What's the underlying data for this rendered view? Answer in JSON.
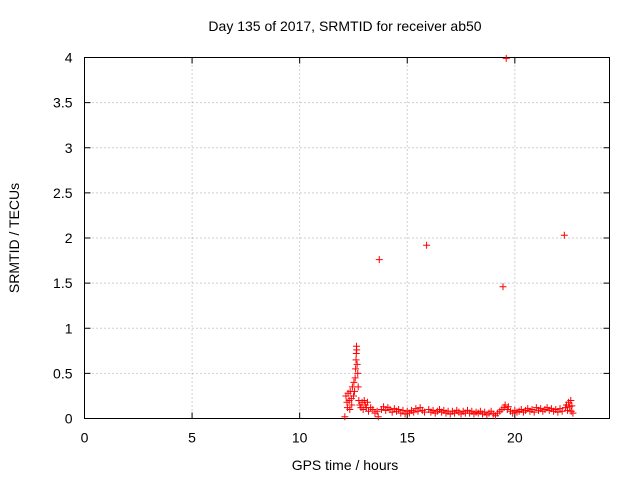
{
  "chart_data": {
    "type": "scatter",
    "title": "Day 135 of 2017, SRMTID for receiver ab50",
    "xlabel": "GPS time / hours",
    "ylabel": "SRMTID / TECUs",
    "xlim": [
      0,
      24.4
    ],
    "ylim": [
      0,
      4
    ],
    "xticks": [
      0,
      5,
      10,
      15,
      20
    ],
    "xtick_labels": [
      "0",
      "5",
      "10",
      "15",
      "20"
    ],
    "yticks": [
      0,
      0.5,
      1,
      1.5,
      2,
      2.5,
      3,
      3.5,
      4
    ],
    "ytick_labels": [
      "0",
      "0.5",
      "1",
      "1.5",
      "2",
      "2.5",
      "3",
      "3.5",
      "4"
    ],
    "grid": true,
    "legend": "none",
    "marker": "+",
    "color": "#ff0000",
    "series": [
      {
        "points": [
          [
            12.1,
            0.02
          ],
          [
            12.15,
            0.25
          ],
          [
            12.2,
            0.18
          ],
          [
            12.22,
            0.12
          ],
          [
            12.25,
            0.28
          ],
          [
            12.3,
            0.2
          ],
          [
            12.33,
            0.1
          ],
          [
            12.35,
            0.3
          ],
          [
            12.4,
            0.22
          ],
          [
            12.42,
            0.15
          ],
          [
            12.45,
            0.35
          ],
          [
            12.5,
            0.25
          ],
          [
            12.52,
            0.4
          ],
          [
            12.55,
            0.3
          ],
          [
            12.58,
            0.45
          ],
          [
            12.6,
            0.55
          ],
          [
            12.62,
            0.65
          ],
          [
            12.63,
            0.72
          ],
          [
            12.64,
            0.8
          ],
          [
            12.65,
            0.76
          ],
          [
            12.67,
            0.6
          ],
          [
            12.7,
            0.5
          ],
          [
            12.72,
            0.35
          ],
          [
            12.75,
            0.2
          ],
          [
            12.8,
            0.15
          ],
          [
            12.85,
            0.12
          ],
          [
            12.9,
            0.18
          ],
          [
            12.95,
            0.1
          ],
          [
            13.0,
            0.2
          ],
          [
            13.05,
            0.15
          ],
          [
            13.1,
            0.12
          ],
          [
            13.15,
            0.18
          ],
          [
            13.2,
            0.08
          ],
          [
            13.3,
            0.12
          ],
          [
            13.4,
            0.1
          ],
          [
            13.5,
            0.06
          ],
          [
            13.6,
            0.08
          ],
          [
            13.65,
            0.02
          ],
          [
            13.7,
            1.76
          ],
          [
            13.8,
            0.1
          ],
          [
            13.9,
            0.13
          ],
          [
            14.0,
            0.09
          ],
          [
            14.1,
            0.12
          ],
          [
            14.2,
            0.1
          ],
          [
            14.3,
            0.07
          ],
          [
            14.4,
            0.11
          ],
          [
            14.5,
            0.08
          ],
          [
            14.6,
            0.1
          ],
          [
            14.7,
            0.06
          ],
          [
            14.8,
            0.09
          ],
          [
            14.9,
            0.05
          ],
          [
            15.0,
            0.08
          ],
          [
            15.1,
            0.06
          ],
          [
            15.2,
            0.09
          ],
          [
            15.3,
            0.07
          ],
          [
            15.4,
            0.11
          ],
          [
            15.5,
            0.08
          ],
          [
            15.6,
            0.12
          ],
          [
            15.7,
            0.09
          ],
          [
            15.8,
            0.07
          ],
          [
            15.9,
            1.92
          ],
          [
            16.0,
            0.1
          ],
          [
            16.1,
            0.07
          ],
          [
            16.2,
            0.09
          ],
          [
            16.3,
            0.06
          ],
          [
            16.4,
            0.08
          ],
          [
            16.5,
            0.1
          ],
          [
            16.6,
            0.07
          ],
          [
            16.7,
            0.09
          ],
          [
            16.8,
            0.06
          ],
          [
            16.9,
            0.08
          ],
          [
            17.0,
            0.05
          ],
          [
            17.1,
            0.08
          ],
          [
            17.2,
            0.06
          ],
          [
            17.3,
            0.09
          ],
          [
            17.4,
            0.07
          ],
          [
            17.5,
            0.05
          ],
          [
            17.6,
            0.08
          ],
          [
            17.7,
            0.06
          ],
          [
            17.8,
            0.09
          ],
          [
            17.9,
            0.06
          ],
          [
            18.0,
            0.08
          ],
          [
            18.1,
            0.05
          ],
          [
            18.2,
            0.07
          ],
          [
            18.3,
            0.06
          ],
          [
            18.4,
            0.08
          ],
          [
            18.5,
            0.05
          ],
          [
            18.6,
            0.07
          ],
          [
            18.7,
            0.04
          ],
          [
            18.8,
            0.06
          ],
          [
            18.9,
            0.08
          ],
          [
            19.0,
            0.05
          ],
          [
            19.1,
            0.03
          ],
          [
            19.2,
            0.06
          ],
          [
            19.3,
            0.08
          ],
          [
            19.4,
            0.1
          ],
          [
            19.45,
            1.46
          ],
          [
            19.5,
            0.12
          ],
          [
            19.55,
            0.15
          ],
          [
            19.6,
            3.99
          ],
          [
            19.65,
            0.1
          ],
          [
            19.7,
            0.13
          ],
          [
            19.8,
            0.08
          ],
          [
            19.9,
            0.06
          ],
          [
            20.0,
            0.09
          ],
          [
            20.1,
            0.07
          ],
          [
            20.2,
            0.08
          ],
          [
            20.3,
            0.1
          ],
          [
            20.4,
            0.07
          ],
          [
            20.5,
            0.09
          ],
          [
            20.6,
            0.11
          ],
          [
            20.7,
            0.08
          ],
          [
            20.8,
            0.1
          ],
          [
            20.9,
            0.07
          ],
          [
            21.0,
            0.12
          ],
          [
            21.1,
            0.09
          ],
          [
            21.2,
            0.11
          ],
          [
            21.3,
            0.08
          ],
          [
            21.4,
            0.1
          ],
          [
            21.5,
            0.12
          ],
          [
            21.6,
            0.09
          ],
          [
            21.7,
            0.11
          ],
          [
            21.8,
            0.08
          ],
          [
            21.9,
            0.1
          ],
          [
            22.0,
            0.07
          ],
          [
            22.1,
            0.11
          ],
          [
            22.2,
            0.08
          ],
          [
            22.3,
            2.03
          ],
          [
            22.35,
            0.12
          ],
          [
            22.4,
            0.15
          ],
          [
            22.45,
            0.09
          ],
          [
            22.5,
            0.18
          ],
          [
            22.55,
            0.13
          ],
          [
            22.6,
            0.2
          ],
          [
            22.62,
            0.08
          ],
          [
            22.65,
            0.14
          ],
          [
            22.7,
            0.06
          ]
        ]
      }
    ]
  }
}
